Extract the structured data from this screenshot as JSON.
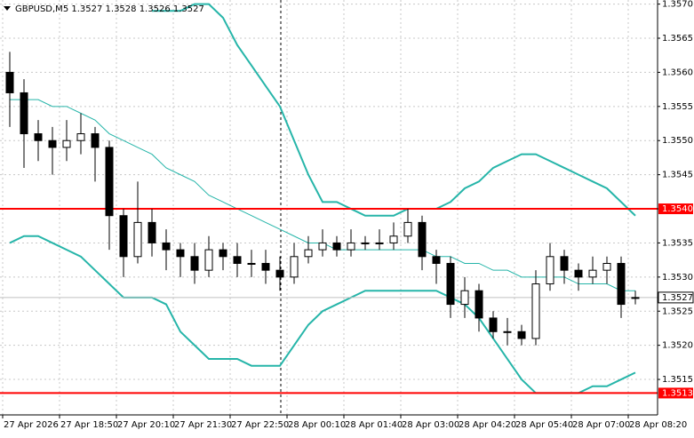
{
  "chart_data": {
    "type": "candlestick",
    "title": "GBPUSD,M5  1.3527 1.3528 1.3526 1.3527",
    "open": [
      1.356,
      1.3557,
      1.3551,
      1.355,
      1.3549,
      1.355,
      1.3551,
      1.3549,
      1.3539,
      1.3533,
      1.3538,
      1.3535,
      1.3534,
      1.3533,
      1.3531,
      1.3534,
      1.3533,
      1.3532,
      1.3532,
      1.3531,
      1.353,
      1.3533,
      1.3534,
      1.3535,
      1.3534,
      1.3535,
      1.3535,
      1.3535,
      1.3536,
      1.3538,
      1.3533,
      1.3532,
      1.3526,
      1.3528,
      1.3524,
      1.3522,
      1.3522,
      1.3521,
      1.3529,
      1.3533,
      1.3531,
      1.353,
      1.3531,
      1.3532,
      1.3527
    ],
    "high": [
      1.3563,
      1.3559,
      1.3553,
      1.3552,
      1.3553,
      1.3554,
      1.3552,
      1.355,
      1.354,
      1.3544,
      1.354,
      1.3537,
      1.3535,
      1.3535,
      1.3536,
      1.3535,
      1.3535,
      1.3534,
      1.3534,
      1.3533,
      1.3535,
      1.3536,
      1.3537,
      1.3536,
      1.3537,
      1.3536,
      1.3537,
      1.3538,
      1.354,
      1.3539,
      1.3534,
      1.3533,
      1.353,
      1.3529,
      1.3525,
      1.3524,
      1.3523,
      1.3531,
      1.3535,
      1.3534,
      1.3532,
      1.3533,
      1.3533,
      1.3533,
      1.3528
    ],
    "low": [
      1.3552,
      1.3546,
      1.3547,
      1.3545,
      1.3547,
      1.3548,
      1.3544,
      1.3534,
      1.353,
      1.3532,
      1.3533,
      1.3531,
      1.353,
      1.3529,
      1.353,
      1.3531,
      1.353,
      1.353,
      1.3529,
      1.3528,
      1.3529,
      1.3532,
      1.3533,
      1.3533,
      1.3533,
      1.3534,
      1.3534,
      1.3534,
      1.3535,
      1.3531,
      1.3529,
      1.3524,
      1.3524,
      1.3522,
      1.3521,
      1.352,
      1.352,
      1.352,
      1.3528,
      1.3529,
      1.3528,
      1.3529,
      1.3529,
      1.3524,
      1.3526
    ],
    "close": [
      1.3557,
      1.3551,
      1.355,
      1.3549,
      1.355,
      1.3551,
      1.3549,
      1.3539,
      1.3533,
      1.3538,
      1.3535,
      1.3534,
      1.3533,
      1.3531,
      1.3534,
      1.3533,
      1.3532,
      1.3532,
      1.3531,
      1.353,
      1.3533,
      1.3534,
      1.3535,
      1.3534,
      1.3535,
      1.3535,
      1.3535,
      1.3536,
      1.3538,
      1.3533,
      1.3532,
      1.3526,
      1.3528,
      1.3524,
      1.3522,
      1.3522,
      1.3521,
      1.3529,
      1.3533,
      1.3531,
      1.353,
      1.3531,
      1.3532,
      1.3526,
      1.3527
    ],
    "bands": [
      {
        "color": "#26b5a9",
        "width": 2,
        "values": [
          null,
          null,
          null,
          null,
          null,
          null,
          null,
          null,
          null,
          null,
          1.3569,
          1.3569,
          1.3569,
          1.357,
          1.357,
          1.3568,
          1.3564,
          1.3561,
          1.3558,
          1.3555,
          1.355,
          1.3545,
          1.3541,
          1.3541,
          1.354,
          1.3539,
          1.3539,
          1.3539,
          1.354,
          1.354,
          1.354,
          1.3541,
          1.3543,
          1.3544,
          1.3546,
          1.3547,
          1.3548,
          1.3548,
          1.3547,
          1.3546,
          1.3545,
          1.3544,
          1.3543,
          1.3541,
          1.3539
        ]
      },
      {
        "color": "#26b5a9",
        "width": 1,
        "values": [
          1.3556,
          1.3556,
          1.3556,
          1.3555,
          1.3555,
          1.3554,
          1.3553,
          1.3551,
          1.355,
          1.3549,
          1.3548,
          1.3546,
          1.3545,
          1.3544,
          1.3542,
          1.3541,
          1.354,
          1.3539,
          1.3538,
          1.3537,
          1.3536,
          1.3535,
          1.3535,
          1.3534,
          1.3534,
          1.3534,
          1.3534,
          1.3534,
          1.3534,
          1.3534,
          1.3533,
          1.3533,
          1.3532,
          1.3532,
          1.3531,
          1.3531,
          1.353,
          1.353,
          1.353,
          1.353,
          1.3529,
          1.3529,
          1.3529,
          1.3528,
          1.3528
        ]
      },
      {
        "color": "#26b5a9",
        "width": 2,
        "values": [
          1.3535,
          1.3536,
          1.3536,
          1.3535,
          1.3534,
          1.3533,
          1.3531,
          1.3529,
          1.3527,
          1.3527,
          1.3527,
          1.3526,
          1.3522,
          1.352,
          1.3518,
          1.3518,
          1.3518,
          1.3517,
          1.3517,
          1.3517,
          1.352,
          1.3523,
          1.3525,
          1.3526,
          1.3527,
          1.3528,
          1.3528,
          1.3528,
          1.3528,
          1.3528,
          1.3528,
          1.3527,
          1.3526,
          1.3524,
          1.3521,
          1.3518,
          1.3515,
          1.3513,
          1.3513,
          1.3513,
          1.3513,
          1.3514,
          1.3514,
          1.3515,
          1.3516
        ]
      }
    ],
    "levels": [
      {
        "value": 1.354,
        "label": "1.3540",
        "color": "#ff0000"
      },
      {
        "value": 1.3513,
        "label": "1.3513",
        "color": "#ff0000"
      }
    ],
    "current": {
      "value": 1.3527,
      "label": "1.3527",
      "color": "#c0c0c0"
    },
    "ylim": [
      1.35098,
      1.35706
    ],
    "yticks": [
      {
        "value": 1.357,
        "label": "1.3570"
      },
      {
        "value": 1.3565,
        "label": "1.3565"
      },
      {
        "value": 1.356,
        "label": "1.3560"
      },
      {
        "value": 1.3555,
        "label": "1.3555"
      },
      {
        "value": 1.355,
        "label": "1.3550"
      },
      {
        "value": 1.3545,
        "label": "1.3545"
      },
      {
        "value": 1.354,
        "label": "1.3540"
      },
      {
        "value": 1.3535,
        "label": "1.3535"
      },
      {
        "value": 1.353,
        "label": "1.3530"
      },
      {
        "value": 1.3525,
        "label": "1.3525"
      },
      {
        "value": 1.352,
        "label": "1.3520"
      },
      {
        "value": 1.3515,
        "label": "1.3515"
      }
    ],
    "xlim": [
      0,
      46
    ],
    "xticks": [
      {
        "value": 0,
        "label": "27 Apr 2026"
      },
      {
        "value": 4,
        "label": "27 Apr 18:50"
      },
      {
        "value": 8,
        "label": "27 Apr 20:10"
      },
      {
        "value": 12,
        "label": "27 Apr 21:30"
      },
      {
        "value": 16,
        "label": "27 Apr 22:50"
      },
      {
        "value": 20,
        "label": "28 Apr 00:10"
      },
      {
        "value": 24,
        "label": "28 Apr 01:40"
      },
      {
        "value": 28,
        "label": "28 Apr 03:00"
      },
      {
        "value": 32,
        "label": "28 Apr 04:20"
      },
      {
        "value": 36,
        "label": "28 Apr 05:40"
      },
      {
        "value": 40,
        "label": "28 Apr 07:00"
      },
      {
        "value": 44,
        "label": "28 Apr 08:20"
      }
    ],
    "grid": true
  }
}
